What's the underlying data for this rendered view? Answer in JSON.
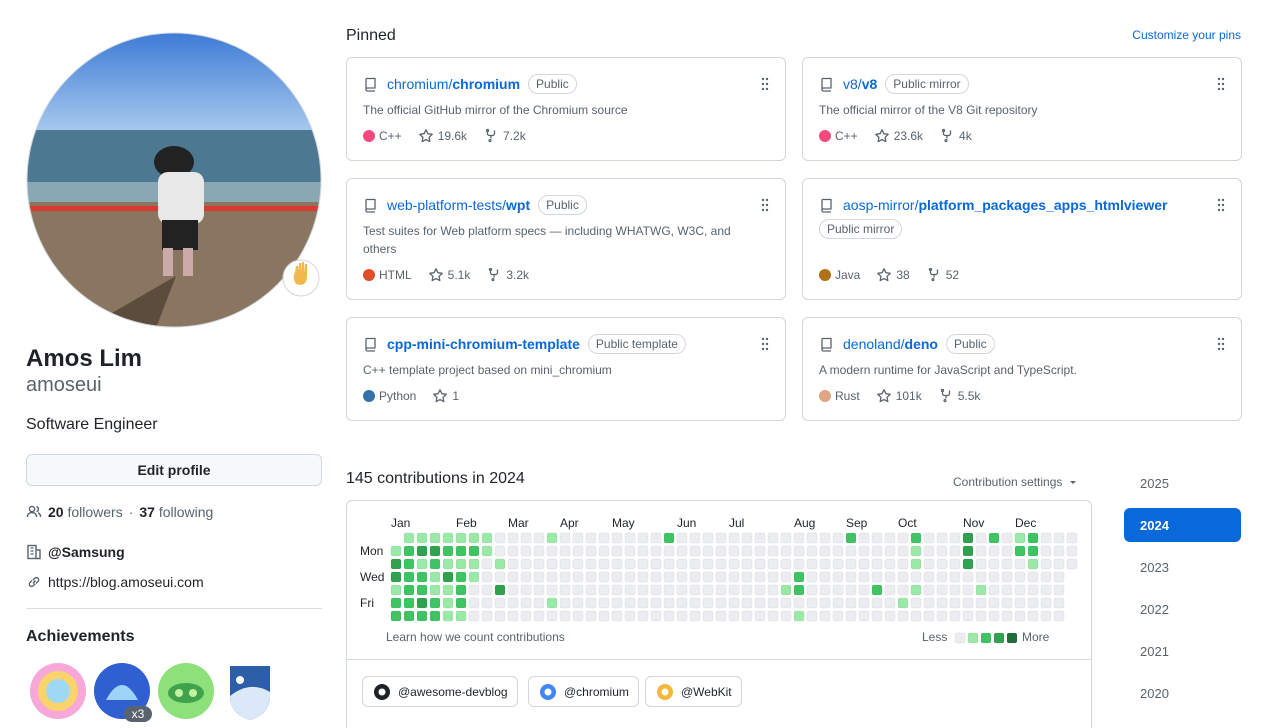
{
  "profile": {
    "name": "Amos Lim",
    "username": "amoseui",
    "bio": "Software Engineer",
    "edit_button": "Edit profile",
    "followers": "20",
    "followers_label": "followers",
    "separator": "·",
    "following": "37",
    "following_label": "following",
    "company": "@Samsung",
    "website": "https://blog.amoseui.com",
    "achievements_title": "Achievements",
    "achievement_count": "x3"
  },
  "pinned": {
    "title": "Pinned",
    "customize": "Customize your pins",
    "repos": [
      {
        "owner": "chromium/",
        "name": "chromium",
        "visibility": "Public",
        "description": "The official GitHub mirror of the Chromium source",
        "language": "C++",
        "language_color": "#f34b7d",
        "stars": "19.6k",
        "forks": "7.2k"
      },
      {
        "owner": "v8/",
        "name": "v8",
        "visibility": "Public mirror",
        "description": "The official mirror of the V8 Git repository",
        "language": "C++",
        "language_color": "#f34b7d",
        "stars": "23.6k",
        "forks": "4k"
      },
      {
        "owner": "web-platform-tests/",
        "name": "wpt",
        "visibility": "Public",
        "description": "Test suites for Web platform specs — including WHATWG, W3C, and others",
        "language": "HTML",
        "language_color": "#e34c26",
        "stars": "5.1k",
        "forks": "3.2k"
      },
      {
        "owner": "aosp-mirror/",
        "name": "platform_packages_apps_htmlviewer",
        "visibility": "Public mirror",
        "language": "Java",
        "language_color": "#b07219",
        "stars": "38",
        "forks": "52"
      },
      {
        "name": "cpp-mini-chromium-template",
        "visibility": "Public template",
        "description": "C++ template project based on mini_chromium",
        "language": "Python",
        "language_color": "#3572a5",
        "stars": "1"
      },
      {
        "owner": "denoland/",
        "name": "deno",
        "visibility": "Public",
        "description": "A modern runtime for JavaScript and TypeScript.",
        "language": "Rust",
        "language_color": "#dea584",
        "stars": "101k",
        "forks": "5.5k"
      }
    ]
  },
  "contributions": {
    "title": "145 contributions in 2024",
    "settings": "Contribution settings",
    "months": [
      "Jan",
      "Feb",
      "Mar",
      "Apr",
      "May",
      "Jun",
      "Jul",
      "Aug",
      "Sep",
      "Oct",
      "Nov",
      "Dec"
    ],
    "days": [
      "Mon",
      "Wed",
      "Fri"
    ],
    "learn": "Learn how we count contributions",
    "less": "Less",
    "more": "More",
    "level_colors": [
      "#ebedf0",
      "#9be9a8",
      "#40c463",
      "#30a14e",
      "#216e39"
    ],
    "levels": [
      [
        null,
        1,
        1,
        1,
        1,
        1,
        1,
        1,
        0,
        0,
        0,
        0,
        1,
        0,
        0,
        0,
        0,
        0,
        0,
        0,
        0,
        2,
        0,
        0,
        0,
        0,
        0,
        0,
        0,
        0,
        0,
        0,
        0,
        0,
        0,
        2,
        0,
        0,
        0,
        0,
        2,
        0,
        0,
        0,
        3,
        0,
        2,
        0,
        1,
        2,
        0,
        0,
        0
      ],
      [
        1,
        2,
        3,
        3,
        2,
        2,
        2,
        1,
        0,
        0,
        0,
        0,
        0,
        0,
        0,
        0,
        0,
        0,
        0,
        0,
        0,
        0,
        0,
        0,
        0,
        0,
        0,
        0,
        0,
        0,
        0,
        0,
        0,
        0,
        0,
        0,
        0,
        0,
        0,
        0,
        1,
        0,
        0,
        0,
        3,
        0,
        0,
        0,
        2,
        2,
        0,
        0,
        0
      ],
      [
        3,
        2,
        1,
        2,
        1,
        1,
        1,
        0,
        1,
        0,
        0,
        0,
        0,
        0,
        0,
        0,
        0,
        0,
        0,
        0,
        0,
        0,
        0,
        0,
        0,
        0,
        0,
        0,
        0,
        0,
        0,
        0,
        0,
        0,
        0,
        0,
        0,
        0,
        0,
        0,
        1,
        0,
        0,
        0,
        3,
        0,
        0,
        0,
        0,
        1,
        0,
        0,
        0
      ],
      [
        3,
        2,
        2,
        1,
        3,
        2,
        1,
        0,
        0,
        0,
        0,
        0,
        0,
        0,
        0,
        0,
        0,
        0,
        0,
        0,
        0,
        0,
        0,
        0,
        0,
        0,
        0,
        0,
        0,
        0,
        0,
        2,
        0,
        0,
        0,
        0,
        0,
        0,
        0,
        0,
        0,
        0,
        0,
        0,
        0,
        0,
        0,
        0,
        0,
        0,
        0,
        0,
        null
      ],
      [
        1,
        2,
        2,
        1,
        1,
        2,
        0,
        0,
        3,
        0,
        0,
        0,
        0,
        0,
        0,
        0,
        0,
        0,
        0,
        0,
        0,
        0,
        0,
        0,
        0,
        0,
        0,
        0,
        0,
        0,
        1,
        2,
        0,
        0,
        0,
        0,
        0,
        2,
        0,
        0,
        1,
        0,
        0,
        0,
        0,
        1,
        0,
        0,
        0,
        0,
        0,
        0,
        null
      ],
      [
        2,
        2,
        3,
        2,
        1,
        2,
        0,
        0,
        0,
        0,
        0,
        0,
        1,
        0,
        0,
        0,
        0,
        0,
        0,
        0,
        0,
        0,
        0,
        0,
        0,
        0,
        0,
        0,
        0,
        0,
        0,
        0,
        0,
        0,
        0,
        0,
        0,
        0,
        0,
        1,
        0,
        0,
        0,
        0,
        0,
        0,
        0,
        0,
        0,
        0,
        0,
        0,
        null
      ],
      [
        2,
        2,
        2,
        2,
        1,
        1,
        0,
        0,
        0,
        0,
        0,
        0,
        0,
        0,
        0,
        0,
        0,
        0,
        0,
        0,
        0,
        0,
        0,
        0,
        0,
        0,
        0,
        0,
        0,
        0,
        0,
        1,
        0,
        0,
        0,
        0,
        0,
        0,
        0,
        0,
        0,
        0,
        0,
        0,
        0,
        0,
        0,
        0,
        0,
        0,
        0,
        0,
        null
      ]
    ]
  },
  "organizations": [
    "@awesome-devblog",
    "@chromium",
    "@WebKit"
  ],
  "years": [
    {
      "label": "2025"
    },
    {
      "label": "2024",
      "selected": true
    },
    {
      "label": "2023"
    },
    {
      "label": "2022"
    },
    {
      "label": "2021"
    },
    {
      "label": "2020"
    }
  ]
}
